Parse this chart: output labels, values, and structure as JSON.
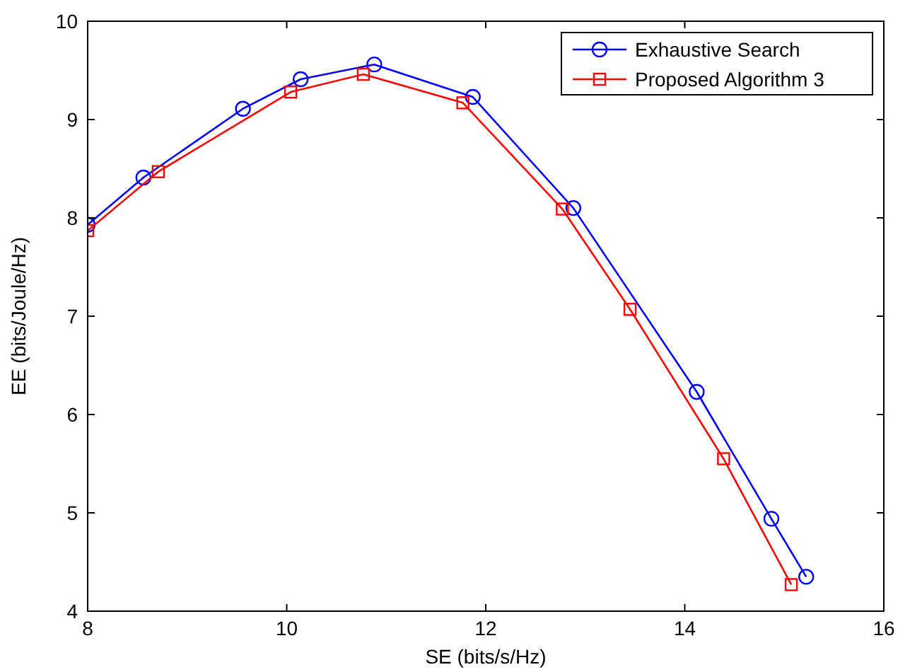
{
  "chart_data": {
    "type": "line",
    "xlabel": "SE (bits/s/Hz)",
    "ylabel": "EE (bits/Joule/Hz)",
    "xlim": [
      8,
      16
    ],
    "xticks": [
      8,
      10,
      12,
      14,
      16
    ],
    "ylim": [
      4,
      10
    ],
    "yticks": [
      4,
      5,
      6,
      7,
      8,
      9,
      10
    ],
    "grid": false,
    "legend": "top right",
    "series": [
      {
        "name": "Exhaustive Search",
        "color": "#0000ff",
        "marker": "circle",
        "x": [
          8,
          8.56,
          9.56,
          10.14,
          10.88,
          11.87,
          12.88,
          14.12,
          14.87,
          15.22
        ],
        "values": [
          7.93,
          8.41,
          9.11,
          9.41,
          9.56,
          9.23,
          8.1,
          6.23,
          4.94,
          4.35
        ]
      },
      {
        "name": "Proposed Algorithm 3",
        "color": "#ff0000",
        "marker": "square",
        "x": [
          8,
          8.71,
          10.04,
          10.77,
          11.77,
          12.77,
          13.45,
          14.39,
          15.07
        ],
        "values": [
          7.87,
          8.47,
          9.28,
          9.46,
          9.17,
          8.09,
          7.07,
          5.55,
          4.27
        ]
      }
    ]
  }
}
